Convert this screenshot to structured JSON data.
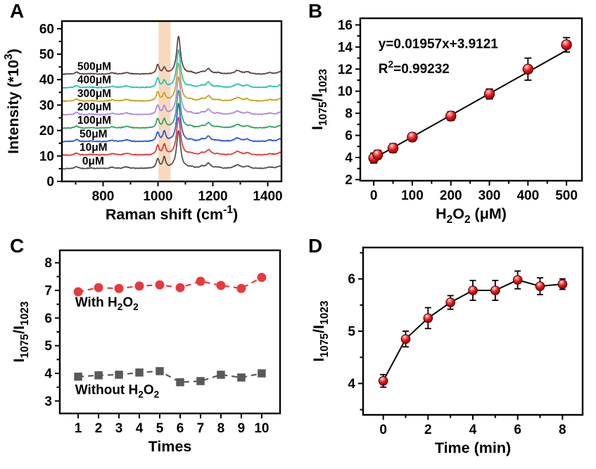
{
  "figure": {
    "background": "#ffffff"
  },
  "chart_data": [
    {
      "panel": "A",
      "type": "line",
      "xlabel": "Raman shift (cm^{-1})",
      "ylabel": "Intensity (*10^{3})",
      "xlim": [
        650,
        1450
      ],
      "ylim": [
        0,
        63
      ],
      "xticks": [
        800,
        1000,
        1200,
        1400
      ],
      "xminor": [
        700,
        900,
        1100,
        1300
      ],
      "yticks": [
        0,
        10,
        20,
        30,
        40,
        50,
        60
      ],
      "yminor": [
        5,
        15,
        25,
        35,
        45,
        55
      ],
      "grid": false,
      "highlight_band": {
        "x0": 1002,
        "x1": 1046,
        "color": "#f6cfae",
        "opacity": 0.8
      },
      "base_peaks": [
        [
          703,
          8,
          0.85
        ],
        [
          755,
          14,
          0.2
        ],
        [
          833,
          11,
          0.5
        ],
        [
          886,
          12,
          0.65
        ],
        [
          999,
          6,
          3.6
        ],
        [
          1075,
          8.5,
          15.0
        ],
        [
          1120,
          9,
          0.5
        ],
        [
          1160,
          8,
          0.7
        ],
        [
          1184,
          10,
          2.0
        ],
        [
          1218,
          11,
          0.45
        ],
        [
          1290,
          14,
          1.4
        ],
        [
          1326,
          10,
          0.85
        ],
        [
          1408,
          11,
          0.55
        ],
        [
          1445,
          11,
          1.0
        ]
      ],
      "series": [
        {
          "label": "0μM",
          "baseline": 5.0,
          "color": "#4d4d4d",
          "peak_1023_amp": 4.2,
          "label_x": 724
        },
        {
          "label": "10μM",
          "baseline": 10.3,
          "color": "#e63238",
          "peak_1023_amp": 4.0,
          "label_x": 714
        },
        {
          "label": "50μM",
          "baseline": 15.6,
          "color": "#2353d8",
          "peak_1023_amp": 3.7,
          "label_x": 714
        },
        {
          "label": "100μM",
          "baseline": 20.9,
          "color": "#2fa05f",
          "peak_1023_amp": 3.4,
          "label_x": 706
        },
        {
          "label": "200μM",
          "baseline": 26.2,
          "color": "#ad85e4",
          "peak_1023_amp": 3.1,
          "label_x": 706
        },
        {
          "label": "300μM",
          "baseline": 31.5,
          "color": "#c7a017",
          "peak_1023_amp": 2.9,
          "label_x": 706
        },
        {
          "label": "400μM",
          "baseline": 36.8,
          "color": "#1ec4b4",
          "peak_1023_amp": 2.6,
          "label_x": 706
        },
        {
          "label": "500μM",
          "baseline": 42.1,
          "color": "#5f3f40",
          "peak_1023_amp": 2.4,
          "label_x": 706
        }
      ]
    },
    {
      "panel": "B",
      "type": "scatter",
      "xlabel": "H_{2}O_{2} (μM)",
      "ylabel": "I_{1075}/I_{1023}",
      "xlim": [
        -35,
        540
      ],
      "ylim": [
        1.9,
        16.6
      ],
      "xticks": [
        0,
        100,
        200,
        300,
        400,
        500
      ],
      "xminor": [
        50,
        150,
        250,
        350,
        450
      ],
      "yticks": [
        2,
        4,
        6,
        8,
        10,
        12,
        14,
        16
      ],
      "yminor": [
        3,
        5,
        7,
        9,
        11,
        13,
        15
      ],
      "grid": false,
      "x": [
        0,
        10,
        50,
        100,
        200,
        300,
        400,
        500
      ],
      "y": [
        3.95,
        4.25,
        4.85,
        5.85,
        7.75,
        9.75,
        12.0,
        14.2
      ],
      "yerr": [
        0.45,
        0.4,
        0.4,
        0.35,
        0.4,
        0.45,
        1.0,
        0.65
      ],
      "fit": {
        "slope": 0.01957,
        "intercept": 3.9121,
        "x_start": 0,
        "x_end": 500
      },
      "annotations": [
        {
          "text": "y=0.01957x+3.9121",
          "x": 12,
          "y": 13.9
        },
        {
          "text": "R^{2}=0.99232",
          "x": 12,
          "y": 11.65
        }
      ],
      "marker_color": "#e80f0f",
      "line_color": "#000000"
    },
    {
      "panel": "C",
      "type": "line",
      "xlabel": "Times",
      "ylabel": "I_{1075}/I_{1023}",
      "xlim": [
        0.1,
        10.9
      ],
      "ylim": [
        2.55,
        8.45
      ],
      "xticks": [
        1,
        2,
        3,
        4,
        5,
        6,
        7,
        8,
        9,
        10
      ],
      "xminor": [],
      "yticks": [
        3,
        4,
        5,
        6,
        7,
        8
      ],
      "yminor": [
        3.5,
        4.5,
        5.5,
        6.5,
        7.5
      ],
      "grid": false,
      "categories": [
        1,
        2,
        3,
        4,
        5,
        6,
        7,
        8,
        9,
        10
      ],
      "series": [
        {
          "name": "With H_{2}O_{2}",
          "marker": "circle",
          "color": "#e8393e",
          "values": [
            6.95,
            7.1,
            7.07,
            7.16,
            7.2,
            7.1,
            7.33,
            7.18,
            7.07,
            7.47
          ],
          "label_pos": [
            0.85,
            6.42
          ]
        },
        {
          "name": "Without H_{2}O_{2}",
          "marker": "square",
          "color": "#595959",
          "values": [
            3.88,
            3.93,
            3.95,
            4.03,
            4.08,
            3.68,
            3.72,
            3.95,
            3.85,
            4.0
          ],
          "label_pos": [
            0.85,
            3.25
          ]
        }
      ]
    },
    {
      "panel": "D",
      "type": "line",
      "xlabel": "Time (min)",
      "ylabel": "I_{1075}/I_{1023}",
      "xlim": [
        -0.9,
        8.9
      ],
      "ylim": [
        3.4,
        6.6
      ],
      "xticks": [
        0,
        2,
        4,
        6,
        8
      ],
      "xminor": [
        1,
        3,
        5,
        7
      ],
      "yticks": [
        4,
        5,
        6
      ],
      "yminor": [
        3.5,
        4.5,
        5.5,
        6.5
      ],
      "grid": false,
      "x": [
        0,
        1,
        2,
        3,
        4,
        5,
        6,
        7,
        8
      ],
      "y": [
        4.05,
        4.85,
        5.25,
        5.55,
        5.78,
        5.78,
        5.98,
        5.86,
        5.9
      ],
      "yerr": [
        0.12,
        0.15,
        0.2,
        0.13,
        0.19,
        0.19,
        0.17,
        0.16,
        0.1
      ],
      "marker_color": "#f01414",
      "line_color": "#000000"
    }
  ]
}
